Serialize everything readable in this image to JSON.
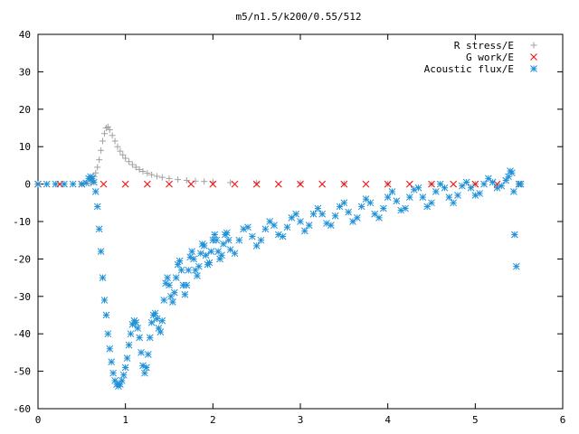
{
  "chart_data": {
    "type": "scatter",
    "title": "m5/n1.5/k200/0.55/512",
    "xlabel": "",
    "ylabel": "",
    "xlim": [
      0,
      6
    ],
    "ylim": [
      -60,
      40
    ],
    "x_ticks": [
      0,
      1,
      2,
      3,
      4,
      5,
      6
    ],
    "y_ticks": [
      -60,
      -50,
      -40,
      -30,
      -20,
      -10,
      0,
      10,
      20,
      30,
      40
    ],
    "grid": false,
    "legend_position": "top-right",
    "series": [
      {
        "name": "R stress/E",
        "marker": "plus",
        "color": "#a0a0a0",
        "points": [
          [
            0.0,
            0
          ],
          [
            0.5,
            0
          ],
          [
            0.6,
            0.2
          ],
          [
            0.62,
            1
          ],
          [
            0.64,
            2
          ],
          [
            0.66,
            3
          ],
          [
            0.68,
            4.5
          ],
          [
            0.7,
            6.5
          ],
          [
            0.72,
            9
          ],
          [
            0.74,
            11.5
          ],
          [
            0.76,
            13.5
          ],
          [
            0.78,
            15
          ],
          [
            0.8,
            15.3
          ],
          [
            0.82,
            14.5
          ],
          [
            0.85,
            13
          ],
          [
            0.88,
            11.5
          ],
          [
            0.91,
            10
          ],
          [
            0.94,
            8.8
          ],
          [
            0.97,
            7.8
          ],
          [
            1.0,
            6.9
          ],
          [
            1.04,
            6
          ],
          [
            1.08,
            5.2
          ],
          [
            1.12,
            4.5
          ],
          [
            1.16,
            3.9
          ],
          [
            1.2,
            3.4
          ],
          [
            1.25,
            2.9
          ],
          [
            1.3,
            2.5
          ],
          [
            1.36,
            2.1
          ],
          [
            1.42,
            1.8
          ],
          [
            1.5,
            1.5
          ],
          [
            1.6,
            1.2
          ],
          [
            1.7,
            1.0
          ],
          [
            1.8,
            0.8
          ],
          [
            1.9,
            0.7
          ],
          [
            2.0,
            0.6
          ],
          [
            2.2,
            0.4
          ],
          [
            2.5,
            0.3
          ],
          [
            3.0,
            0.2
          ],
          [
            3.5,
            0.1
          ],
          [
            4.0,
            0.1
          ],
          [
            4.5,
            0
          ],
          [
            5.0,
            0
          ],
          [
            5.5,
            0
          ]
        ]
      },
      {
        "name": "G work/E",
        "marker": "cross",
        "color": "#ff0000",
        "points": [
          [
            0.0,
            0
          ],
          [
            0.25,
            0
          ],
          [
            0.5,
            0
          ],
          [
            0.75,
            0
          ],
          [
            1.0,
            0
          ],
          [
            1.25,
            0
          ],
          [
            1.5,
            0
          ],
          [
            1.75,
            0
          ],
          [
            2.0,
            0
          ],
          [
            2.25,
            0
          ],
          [
            2.5,
            0
          ],
          [
            2.75,
            0
          ],
          [
            3.0,
            0
          ],
          [
            3.25,
            0
          ],
          [
            3.5,
            0
          ],
          [
            3.75,
            0
          ],
          [
            4.0,
            0
          ],
          [
            4.25,
            0
          ],
          [
            4.5,
            0
          ],
          [
            4.75,
            0
          ],
          [
            5.0,
            0
          ],
          [
            5.25,
            0
          ],
          [
            5.5,
            0
          ]
        ]
      },
      {
        "name": "Acoustic flux/E",
        "marker": "star",
        "color": "#1e90d8",
        "points": [
          [
            0.0,
            0
          ],
          [
            0.1,
            0
          ],
          [
            0.2,
            0
          ],
          [
            0.3,
            0
          ],
          [
            0.4,
            0
          ],
          [
            0.5,
            0
          ],
          [
            0.55,
            0.3
          ],
          [
            0.58,
            1.5
          ],
          [
            0.6,
            2
          ],
          [
            0.62,
            1.5
          ],
          [
            0.64,
            0.5
          ],
          [
            0.66,
            -2
          ],
          [
            0.68,
            -6
          ],
          [
            0.7,
            -12
          ],
          [
            0.72,
            -18
          ],
          [
            0.74,
            -25
          ],
          [
            0.76,
            -31
          ],
          [
            0.78,
            -35
          ],
          [
            0.8,
            -40
          ],
          [
            0.82,
            -44
          ],
          [
            0.84,
            -47.5
          ],
          [
            0.86,
            -50.5
          ],
          [
            0.88,
            -52.5
          ],
          [
            0.9,
            -53.5
          ],
          [
            0.92,
            -54
          ],
          [
            0.94,
            -53.5
          ],
          [
            0.96,
            -52.5
          ],
          [
            0.98,
            -51
          ],
          [
            1.0,
            -49
          ],
          [
            1.02,
            -46.5
          ],
          [
            1.04,
            -43
          ],
          [
            1.06,
            -40
          ],
          [
            1.08,
            -37.5
          ],
          [
            1.1,
            -36.5
          ],
          [
            1.12,
            -37
          ],
          [
            1.14,
            -38.5
          ],
          [
            1.16,
            -41
          ],
          [
            1.18,
            -45
          ],
          [
            1.2,
            -48.5
          ],
          [
            1.22,
            -50.5
          ],
          [
            1.24,
            -49
          ],
          [
            1.26,
            -45.5
          ],
          [
            1.28,
            -41
          ],
          [
            1.3,
            -37
          ],
          [
            1.32,
            -35
          ],
          [
            1.34,
            -34.5
          ],
          [
            1.36,
            -36
          ],
          [
            1.38,
            -38.5
          ],
          [
            1.4,
            -39.5
          ],
          [
            1.42,
            -36.5
          ],
          [
            1.44,
            -31
          ],
          [
            1.46,
            -26.5
          ],
          [
            1.48,
            -25
          ],
          [
            1.5,
            -27
          ],
          [
            1.52,
            -30
          ],
          [
            1.54,
            -31.5
          ],
          [
            1.56,
            -29
          ],
          [
            1.58,
            -25
          ],
          [
            1.6,
            -21.5
          ],
          [
            1.62,
            -20.5
          ],
          [
            1.64,
            -23
          ],
          [
            1.66,
            -27
          ],
          [
            1.68,
            -29.5
          ],
          [
            1.7,
            -27
          ],
          [
            1.72,
            -23
          ],
          [
            1.74,
            -19.5
          ],
          [
            1.76,
            -18
          ],
          [
            1.78,
            -20
          ],
          [
            1.8,
            -23
          ],
          [
            1.82,
            -24.5
          ],
          [
            1.84,
            -22
          ],
          [
            1.86,
            -18.5
          ],
          [
            1.88,
            -16
          ],
          [
            1.9,
            -16.5
          ],
          [
            1.92,
            -19
          ],
          [
            1.94,
            -21.5
          ],
          [
            1.96,
            -21
          ],
          [
            1.98,
            -18
          ],
          [
            2.0,
            -15
          ],
          [
            2.02,
            -13.5
          ],
          [
            2.04,
            -15
          ],
          [
            2.06,
            -18
          ],
          [
            2.08,
            -20
          ],
          [
            2.1,
            -19
          ],
          [
            2.12,
            -16
          ],
          [
            2.14,
            -13.5
          ],
          [
            2.16,
            -13
          ],
          [
            2.18,
            -15
          ],
          [
            2.2,
            -17.5
          ],
          [
            2.25,
            -18.5
          ],
          [
            2.3,
            -15
          ],
          [
            2.35,
            -12
          ],
          [
            2.4,
            -11.5
          ],
          [
            2.45,
            -14
          ],
          [
            2.5,
            -16.5
          ],
          [
            2.55,
            -15
          ],
          [
            2.6,
            -12
          ],
          [
            2.65,
            -10
          ],
          [
            2.7,
            -11
          ],
          [
            2.75,
            -13.5
          ],
          [
            2.8,
            -14
          ],
          [
            2.85,
            -11.5
          ],
          [
            2.9,
            -9
          ],
          [
            2.95,
            -8
          ],
          [
            3.0,
            -10
          ],
          [
            3.05,
            -12.5
          ],
          [
            3.1,
            -11
          ],
          [
            3.15,
            -8
          ],
          [
            3.2,
            -6.5
          ],
          [
            3.25,
            -8
          ],
          [
            3.3,
            -10.5
          ],
          [
            3.35,
            -11
          ],
          [
            3.4,
            -8.5
          ],
          [
            3.45,
            -6
          ],
          [
            3.5,
            -5
          ],
          [
            3.55,
            -7.5
          ],
          [
            3.6,
            -10
          ],
          [
            3.65,
            -9
          ],
          [
            3.7,
            -6
          ],
          [
            3.75,
            -4
          ],
          [
            3.8,
            -5
          ],
          [
            3.85,
            -8
          ],
          [
            3.9,
            -9
          ],
          [
            3.95,
            -6.5
          ],
          [
            4.0,
            -3.5
          ],
          [
            4.05,
            -2
          ],
          [
            4.1,
            -4.5
          ],
          [
            4.15,
            -7
          ],
          [
            4.2,
            -6.5
          ],
          [
            4.25,
            -3.5
          ],
          [
            4.3,
            -1.5
          ],
          [
            4.35,
            -1
          ],
          [
            4.4,
            -3.5
          ],
          [
            4.45,
            -6
          ],
          [
            4.5,
            -5
          ],
          [
            4.55,
            -2
          ],
          [
            4.6,
            0
          ],
          [
            4.65,
            -1
          ],
          [
            4.7,
            -3.5
          ],
          [
            4.75,
            -5
          ],
          [
            4.8,
            -3
          ],
          [
            4.85,
            -0.5
          ],
          [
            4.9,
            0.5
          ],
          [
            4.95,
            -1
          ],
          [
            5.0,
            -3
          ],
          [
            5.05,
            -2.5
          ],
          [
            5.1,
            0
          ],
          [
            5.15,
            1.5
          ],
          [
            5.2,
            0.5
          ],
          [
            5.25,
            -1
          ],
          [
            5.3,
            -0.5
          ],
          [
            5.35,
            1
          ],
          [
            5.38,
            2
          ],
          [
            5.4,
            3.5
          ],
          [
            5.42,
            3
          ],
          [
            5.44,
            -2
          ],
          [
            5.45,
            -13.5
          ],
          [
            5.47,
            -22
          ],
          [
            5.5,
            0
          ],
          [
            5.52,
            0
          ]
        ]
      }
    ]
  }
}
